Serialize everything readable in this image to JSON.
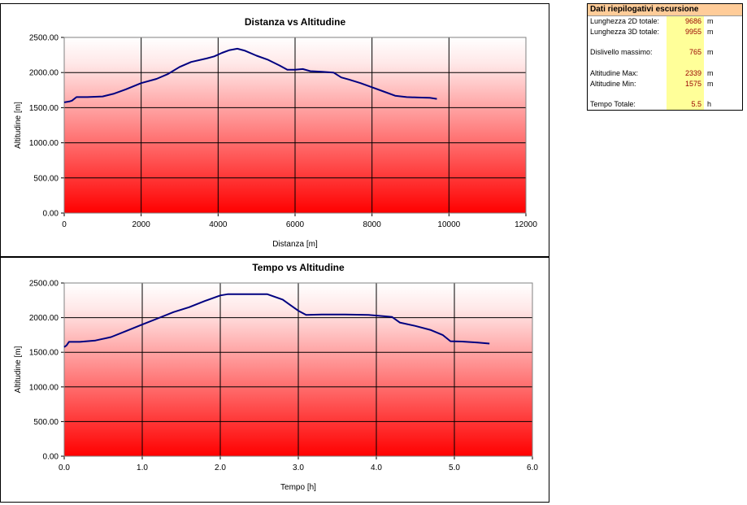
{
  "chart_data": [
    {
      "type": "line",
      "title": "Distanza vs Altitudine",
      "xlabel": "Distanza [m]",
      "ylabel": "Altitudine [m]",
      "xlim": [
        0,
        12000
      ],
      "ylim": [
        0,
        2500
      ],
      "xticks": [
        "0",
        "2000",
        "4000",
        "6000",
        "8000",
        "10000",
        "12000"
      ],
      "yticks": [
        "0.00",
        "500.00",
        "1000.00",
        "1500.00",
        "2000.00",
        "2500.00"
      ],
      "series": [
        {
          "color": "#000080",
          "x": [
            0,
            150,
            200,
            320,
            600,
            1000,
            1300,
            1600,
            2000,
            2400,
            2700,
            3000,
            3300,
            3700,
            3900,
            4100,
            4300,
            4500,
            4700,
            5000,
            5300,
            5600,
            5800,
            6000,
            6200,
            6400,
            6700,
            7000,
            7200,
            7400,
            7700,
            8000,
            8300,
            8600,
            8900,
            9200,
            9500,
            9686
          ],
          "y": [
            1575,
            1590,
            1600,
            1650,
            1650,
            1660,
            1700,
            1760,
            1850,
            1910,
            1980,
            2080,
            2150,
            2200,
            2230,
            2280,
            2320,
            2339,
            2310,
            2240,
            2180,
            2100,
            2040,
            2040,
            2050,
            2020,
            2010,
            2000,
            1930,
            1900,
            1850,
            1790,
            1730,
            1670,
            1650,
            1645,
            1640,
            1625
          ]
        }
      ]
    },
    {
      "type": "line",
      "title": "Tempo vs Altitudine",
      "xlabel": "Tempo [h]",
      "ylabel": "Altitudine [m]",
      "xlim": [
        0,
        6
      ],
      "ylim": [
        0,
        2500
      ],
      "xticks": [
        "0.0",
        "1.0",
        "2.0",
        "3.0",
        "4.0",
        "5.0",
        "6.0"
      ],
      "yticks": [
        "0.00",
        "500.00",
        "1000.00",
        "1500.00",
        "2000.00",
        "2500.00"
      ],
      "series": [
        {
          "color": "#000080",
          "x": [
            0,
            0.03,
            0.06,
            0.2,
            0.4,
            0.6,
            0.8,
            1.0,
            1.2,
            1.4,
            1.6,
            1.8,
            2.0,
            2.1,
            2.3,
            2.5,
            2.6,
            2.8,
            2.9,
            3.0,
            3.1,
            3.3,
            3.6,
            3.9,
            4.1,
            4.2,
            4.3,
            4.5,
            4.7,
            4.85,
            4.95,
            5.1,
            5.3,
            5.45
          ],
          "y": [
            1575,
            1600,
            1650,
            1650,
            1670,
            1720,
            1810,
            1900,
            1990,
            2080,
            2150,
            2240,
            2320,
            2339,
            2339,
            2339,
            2339,
            2260,
            2180,
            2100,
            2040,
            2045,
            2045,
            2040,
            2020,
            2010,
            1930,
            1880,
            1820,
            1750,
            1660,
            1655,
            1640,
            1625
          ]
        }
      ]
    }
  ],
  "summary": {
    "title": "Dati riepilogativi escursione",
    "rows": [
      {
        "label": "Lunghezza 2D totale:",
        "value": "9686",
        "unit": "m"
      },
      {
        "label": "Lunghezza 3D totale:",
        "value": "9955",
        "unit": "m"
      },
      {
        "label": "",
        "value": "",
        "unit": ""
      },
      {
        "label": "Dislivello massimo:",
        "value": "765",
        "unit": "m"
      },
      {
        "label": "",
        "value": "",
        "unit": ""
      },
      {
        "label": "Altitudine Max:",
        "value": "2339",
        "unit": "m"
      },
      {
        "label": "Altitudine Min:",
        "value": "1575",
        "unit": "m"
      },
      {
        "label": "",
        "value": "",
        "unit": ""
      },
      {
        "label": "Tempo Totale:",
        "value": "5.5",
        "unit": "h"
      }
    ]
  },
  "colors": {
    "plot_top": "#ffffff",
    "plot_bottom": "#ff0000",
    "line": "#000080",
    "summary_header": "#ffcc99",
    "summary_value_bg": "#ffff99"
  }
}
